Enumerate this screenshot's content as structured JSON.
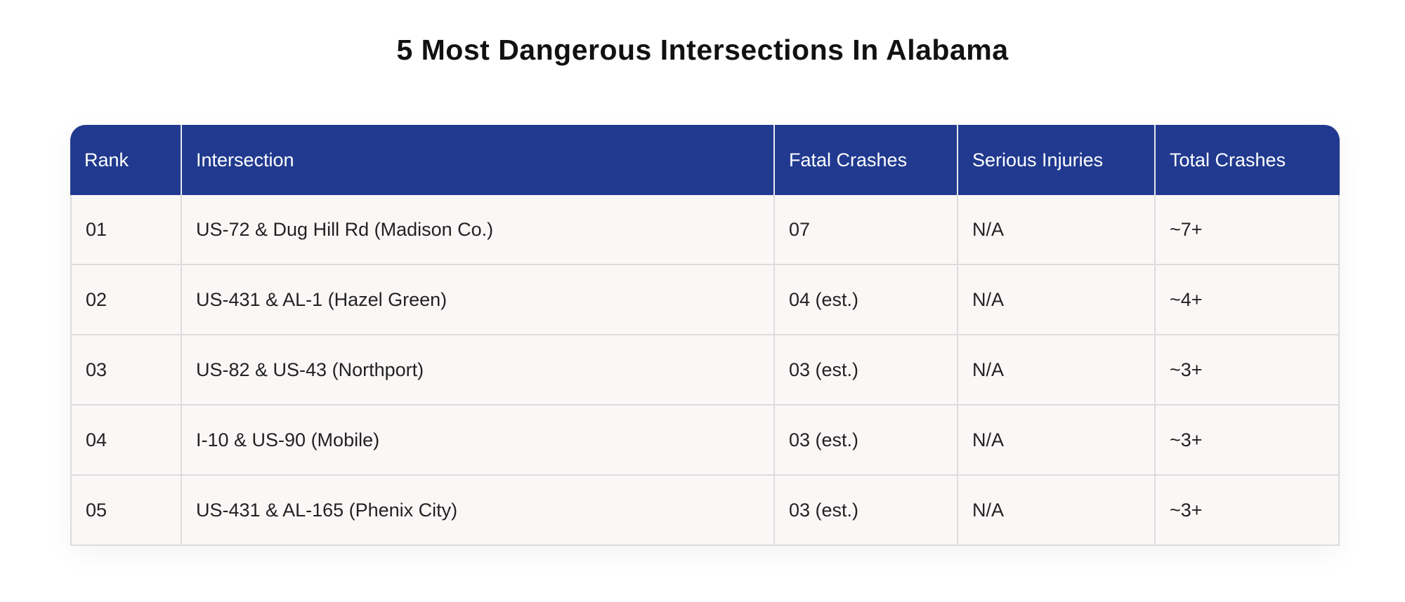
{
  "title": "5 Most Dangerous Intersections In Alabama",
  "colors": {
    "header_bg": "#213a8f",
    "header_text": "#ffffff",
    "row_bg": "#fcf7f7",
    "border": "#dcdcdc"
  },
  "table": {
    "headers": [
      "Rank",
      "Intersection",
      "Fatal Crashes",
      "Serious Injuries",
      "Total Crashes"
    ],
    "rows": [
      {
        "rank": "01",
        "intersection": "US-72 & Dug Hill Rd (Madison Co.)",
        "fatal": "07",
        "serious": "N/A",
        "total": "~7+"
      },
      {
        "rank": "02",
        "intersection": "US-431 & AL-1 (Hazel Green)",
        "fatal": "04 (est.)",
        "serious": "N/A",
        "total": "~4+"
      },
      {
        "rank": "03",
        "intersection": "US-82 & US-43 (Northport)",
        "fatal": "03 (est.)",
        "serious": "N/A",
        "total": "~3+"
      },
      {
        "rank": "04",
        "intersection": "I-10 & US-90 (Mobile)",
        "fatal": "03 (est.)",
        "serious": "N/A",
        "total": "~3+"
      },
      {
        "rank": "05",
        "intersection": "US-431 & AL-165 (Phenix City)",
        "fatal": "03 (est.)",
        "serious": "N/A",
        "total": "~3+"
      }
    ]
  }
}
